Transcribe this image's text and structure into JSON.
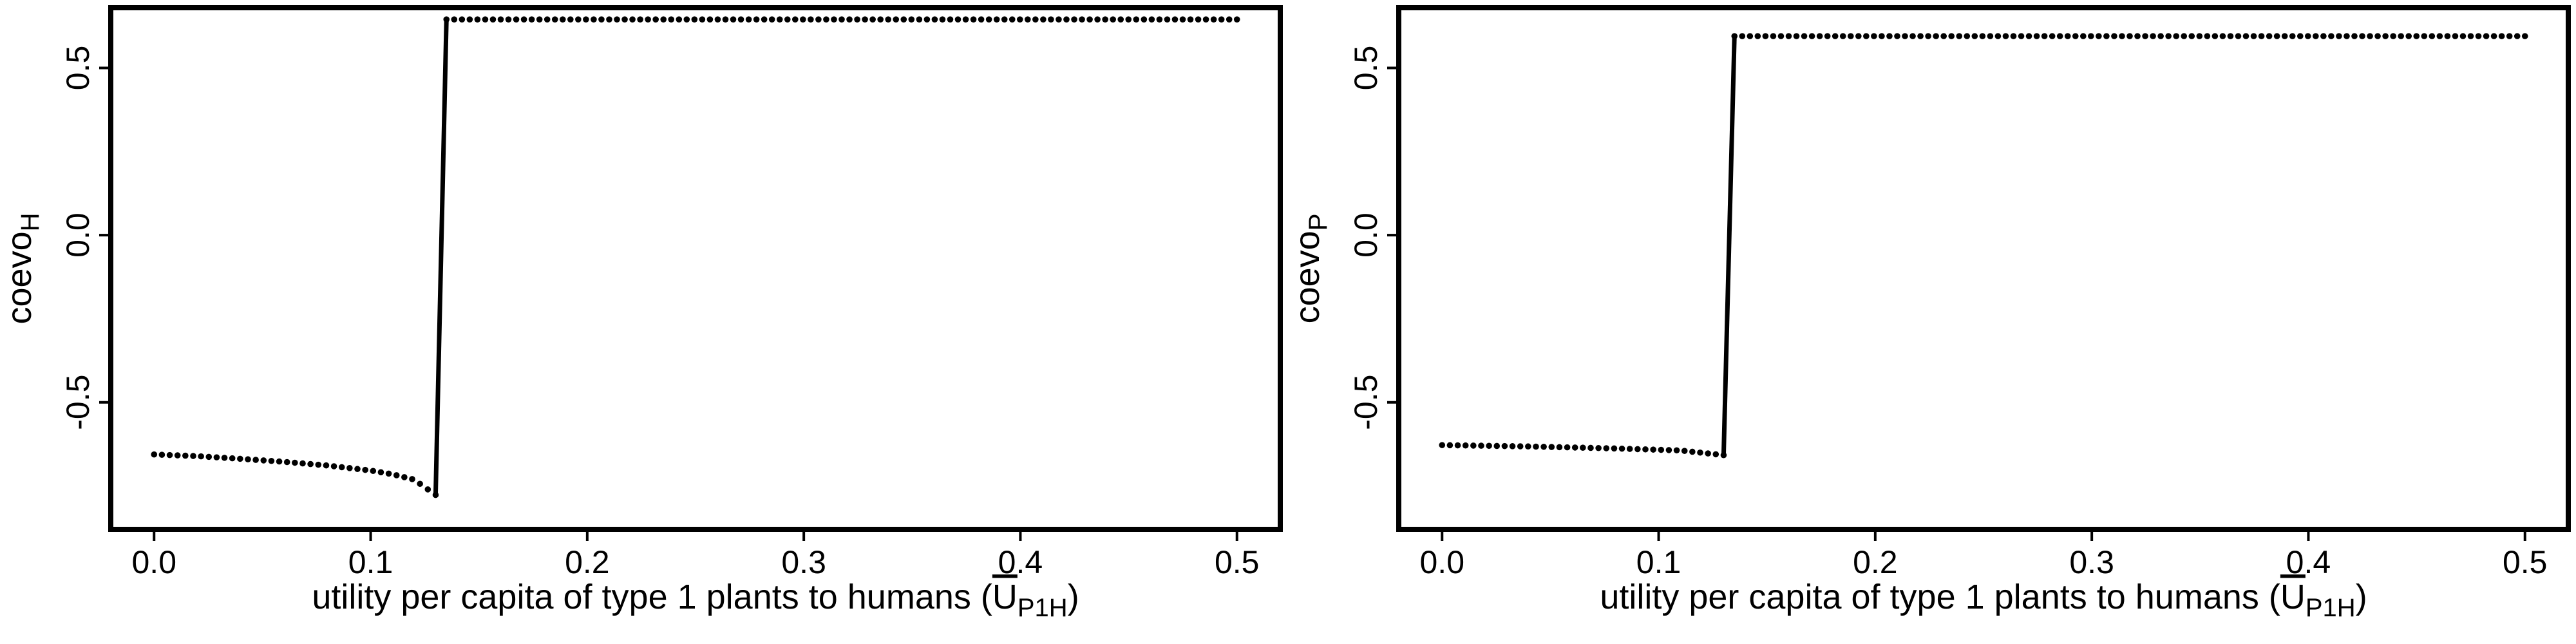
{
  "chart_data": [
    {
      "type": "scatter",
      "xlabel": "utility per capita of type 1 plants to humans (",
      "xlabel_sym": "U",
      "xlabel_sub": "P1H",
      "xlabel_close": ")",
      "ylabel": "coevo",
      "ylabel_sub": "H",
      "xlim": [
        -0.02,
        0.52
      ],
      "ylim": [
        -0.88,
        0.68
      ],
      "xticks": [
        0.0,
        0.1,
        0.2,
        0.3,
        0.4,
        0.5
      ],
      "xtick_labels": [
        "0.0",
        "0.1",
        "0.2",
        "0.3",
        "0.4",
        "0.5"
      ],
      "yticks": [
        -0.5,
        0.0,
        0.5
      ],
      "ytick_labels": [
        "-0.5",
        "0.0",
        "0.5"
      ],
      "grid": false,
      "series": [
        {
          "marker": "dots",
          "segments": [
            {
              "x_start": 0.0,
              "x_end": 0.13,
              "points": [
                [
                  0.0,
                  -0.656
                ],
                [
                  0.02,
                  -0.661
                ],
                [
                  0.04,
                  -0.669
                ],
                [
                  0.06,
                  -0.678
                ],
                [
                  0.08,
                  -0.689
                ],
                [
                  0.1,
                  -0.704
                ],
                [
                  0.11,
                  -0.715
                ],
                [
                  0.12,
                  -0.731
                ],
                [
                  0.13,
                  -0.777
                ]
              ]
            },
            {
              "x_start": 0.135,
              "x_end": 0.5,
              "points": [
                [
                  0.135,
                  0.645
                ],
                [
                  0.5,
                  0.645
                ]
              ]
            }
          ],
          "jump": {
            "x": [
              0.13,
              0.135
            ],
            "y": [
              -0.777,
              0.645
            ]
          }
        }
      ]
    },
    {
      "type": "scatter",
      "xlabel": "utility per capita of type 1 plants to humans (",
      "xlabel_sym": "U",
      "xlabel_sub": "P1H",
      "xlabel_close": ")",
      "ylabel": "coevo",
      "ylabel_sub": "P",
      "xlim": [
        -0.02,
        0.52
      ],
      "ylim": [
        -0.88,
        0.68
      ],
      "xticks": [
        0.0,
        0.1,
        0.2,
        0.3,
        0.4,
        0.5
      ],
      "xtick_labels": [
        "0.0",
        "0.1",
        "0.2",
        "0.3",
        "0.4",
        "0.5"
      ],
      "yticks": [
        -0.5,
        0.0,
        0.5
      ],
      "ytick_labels": [
        "-0.5",
        "0.0",
        "0.5"
      ],
      "grid": false,
      "series": [
        {
          "marker": "dots",
          "segments": [
            {
              "x_start": 0.0,
              "x_end": 0.13,
              "points": [
                [
                  0.0,
                  -0.628
                ],
                [
                  0.04,
                  -0.632
                ],
                [
                  0.08,
                  -0.638
                ],
                [
                  0.11,
                  -0.644
                ],
                [
                  0.13,
                  -0.658
                ]
              ]
            },
            {
              "x_start": 0.135,
              "x_end": 0.5,
              "points": [
                [
                  0.135,
                  0.595
                ],
                [
                  0.5,
                  0.595
                ]
              ]
            }
          ],
          "jump": {
            "x": [
              0.13,
              0.135
            ],
            "y": [
              -0.658,
              0.595
            ]
          }
        }
      ]
    }
  ]
}
